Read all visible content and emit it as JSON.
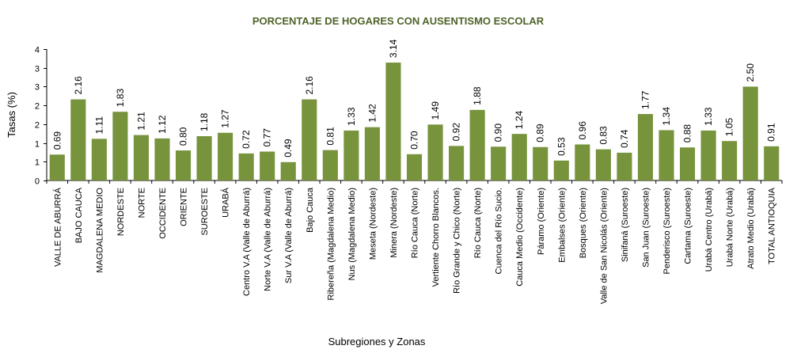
{
  "chart_data": {
    "type": "bar",
    "title": "PORCENTAJE DE HOGARES CON AUSENTISMO ESCOLAR",
    "xlabel": "Subregiones y Zonas",
    "ylabel": "Tasas (%)",
    "ylim": [
      0,
      3.5
    ],
    "yticks": [
      0,
      0.5,
      1.0,
      1.5,
      2.0,
      2.5,
      3.0,
      3.5
    ],
    "ytick_labels": [
      "0",
      "1",
      "1",
      "2",
      "2",
      "3",
      "3",
      "4"
    ],
    "grid": false,
    "legend": "none",
    "bar_color": "#77933c",
    "title_color": "#4f6228",
    "categories": [
      "VALLE DE ABURRÁ",
      "BAJO CAUCA",
      "MAGDALENA MEDIO",
      "NORDESTE",
      "NORTE",
      "OCCIDENTE",
      "ORIENTE",
      "SUROESTE",
      "URABÁ",
      "Centro V.A (Valle de Aburrá)",
      "Norte V.A (Valle de Aburrá)",
      "Sur V.A (Valle de Aburrá)",
      "Bajo Cauca",
      "Ribereña  (Magdalena Medio)",
      "Nus  (Magdalena Medio)",
      "Meseta  (Nordeste)",
      "Minera  (Nordeste)",
      "Río Cauca  (Norte)",
      "Vertiente Chorro Blancos.",
      "Río Grande y Chico  (Norte)",
      "Río Cauca (Norte)",
      "Cuenca del Río Sucio.",
      "Cauca Medio  (Occidente)",
      "Páramo  (Oriente)",
      "Embalses (Oriente)",
      "Bosques  (Oriente)",
      "Valle de San Nicolás (Oriente)",
      "Sinifaná  (Suroeste)",
      "San Juan  (Suroeste)",
      "Penderisco  (Suroeste)",
      "Cartama  (Suroeste)",
      "Urabá Centro  (Urabá)",
      "Urabá Norte  (Urabá)",
      "Atrato Medio (Urabá)",
      "TOTAL ANTIOQUIA"
    ],
    "values": [
      0.69,
      2.16,
      1.11,
      1.83,
      1.21,
      1.12,
      0.8,
      1.18,
      1.27,
      0.72,
      0.77,
      0.49,
      2.16,
      0.81,
      1.33,
      1.42,
      3.14,
      0.7,
      1.49,
      0.92,
      1.88,
      0.9,
      1.24,
      0.89,
      0.53,
      0.96,
      0.83,
      0.74,
      1.77,
      1.34,
      0.88,
      1.33,
      1.05,
      2.5,
      0.91
    ],
    "data_labels": [
      "0.69",
      "2.16",
      "1.11",
      "1.83",
      "1.21",
      "1.12",
      "0.80",
      "1.18",
      "1.27",
      "0.72",
      "0.77",
      "0.49",
      "2.16",
      "0.81",
      "1.33",
      "1.42",
      "3.14",
      "0.70",
      "1.49",
      "0.92",
      "1.88",
      "0.90",
      "1.24",
      "0.89",
      "0.53",
      "0.96",
      "0.83",
      "0.74",
      "1.77",
      "1.34",
      "0.88",
      "1.33",
      "1.05",
      "2.50",
      "0.91"
    ]
  }
}
